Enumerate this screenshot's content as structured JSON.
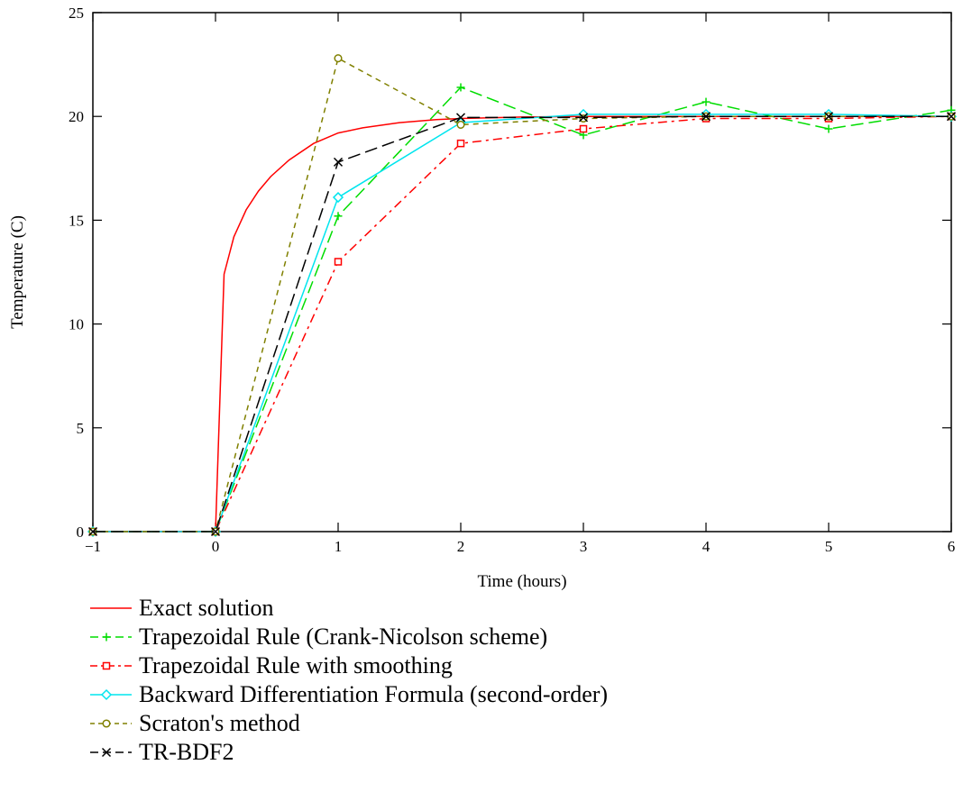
{
  "chart_data": {
    "type": "line",
    "title": "",
    "xlabel": "Time (hours)",
    "ylabel": "Temperature (C)",
    "xlim": [
      -1,
      6
    ],
    "ylim": [
      0,
      25
    ],
    "xticks": [
      -1,
      0,
      1,
      2,
      3,
      4,
      5,
      6
    ],
    "yticks": [
      0,
      5,
      10,
      15,
      20,
      25
    ],
    "xtick_labels": [
      "−1",
      "0",
      "1",
      "2",
      "3",
      "4",
      "5",
      "6"
    ],
    "ytick_labels": [
      "0",
      "5",
      "10",
      "15",
      "20",
      "25"
    ],
    "grid": false,
    "legend_position": "bottom",
    "series": [
      {
        "name": "Exact solution",
        "color": "#ff0000",
        "dash": "solid",
        "marker": "none",
        "x": [
          -1,
          0,
          0.07,
          0.15,
          0.25,
          0.35,
          0.45,
          0.6,
          0.8,
          1.0,
          1.2,
          1.5,
          1.8,
          2.0,
          2.5,
          3,
          4,
          5,
          6
        ],
        "y": [
          0,
          0,
          12.4,
          14.2,
          15.5,
          16.4,
          17.1,
          17.9,
          18.7,
          19.2,
          19.45,
          19.7,
          19.85,
          19.9,
          19.97,
          20,
          20,
          20,
          20
        ]
      },
      {
        "name": "Trapezoidal  Rule (Crank-Nicolson scheme)",
        "color": "#00dd00",
        "dash": "long-dash",
        "marker": "plus",
        "x": [
          -1,
          0,
          1,
          2,
          3,
          4,
          5,
          6
        ],
        "y": [
          0,
          0,
          15.2,
          21.4,
          19.1,
          20.7,
          19.4,
          20.3
        ]
      },
      {
        "name": "Trapezoidal Rule with smoothing",
        "color": "#ff0000",
        "dash": "dash-dot",
        "marker": "square",
        "x": [
          -1,
          0,
          1,
          2,
          3,
          4,
          5,
          6
        ],
        "y": [
          0,
          0,
          13.0,
          18.7,
          19.4,
          19.9,
          19.9,
          20.0
        ]
      },
      {
        "name": "Backward Differentiation Formula (second-order)",
        "color": "#00e5ee",
        "dash": "solid",
        "marker": "diamond",
        "x": [
          -1,
          0,
          1,
          2,
          3,
          4,
          5,
          6
        ],
        "y": [
          0,
          0,
          16.1,
          19.7,
          20.1,
          20.1,
          20.1,
          20.0
        ]
      },
      {
        "name": "Scraton's method",
        "color": "#808000",
        "dash": "short-dash",
        "marker": "circle",
        "x": [
          -1,
          0,
          1,
          2,
          3,
          4,
          5,
          6
        ],
        "y": [
          0,
          0,
          22.8,
          19.6,
          19.9,
          20.0,
          20.0,
          20.0
        ]
      },
      {
        "name": "TR-BDF2",
        "color": "#000000",
        "dash": "long-dash",
        "marker": "x",
        "x": [
          -1,
          0,
          1,
          2,
          3,
          4,
          5,
          6
        ],
        "y": [
          0,
          0,
          17.8,
          19.95,
          19.95,
          20.0,
          20.0,
          20.0
        ]
      }
    ]
  }
}
